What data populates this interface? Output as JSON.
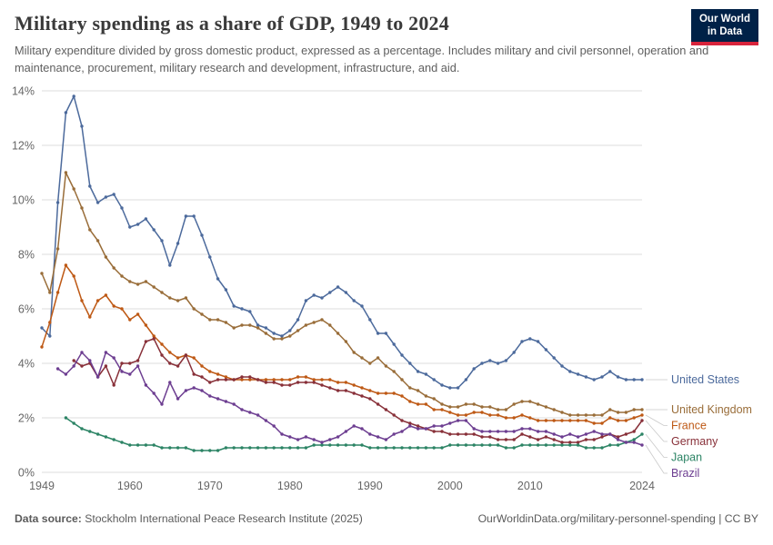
{
  "logo": {
    "line1": "Our World",
    "line2": "in Data",
    "bg_color": "#002147",
    "accent_color": "#d8243c"
  },
  "footer": {
    "source_label": "Data source:",
    "source_text": "Stockholm International Peace Research Institute (2025)",
    "link_text": "OurWorldinData.org/military-personnel-spending | CC BY"
  },
  "chart_data": {
    "type": "line",
    "title": "Military spending as a share of GDP, 1949 to 2024",
    "subtitle": "Military expenditure divided by gross domestic product, expressed as a percentage. Includes military and civil personnel, operation and maintenance, procurement, military research and development, infrastructure, and aid.",
    "grid": true,
    "legend_position": "right-end-labels",
    "x_range": [
      1949,
      2024
    ],
    "x_ticks": [
      1949,
      1960,
      1970,
      1980,
      1990,
      2000,
      2010,
      2024
    ],
    "y_range": [
      0,
      14
    ],
    "y_ticks": [
      0,
      2,
      4,
      6,
      8,
      10,
      12,
      14
    ],
    "y_unit": "%",
    "series": [
      {
        "name": "United States",
        "color": "#4C6A9C",
        "start_year": 1949,
        "values": [
          5.3,
          5.0,
          9.9,
          13.2,
          13.8,
          12.7,
          10.5,
          9.9,
          10.1,
          10.2,
          9.7,
          9.0,
          9.1,
          9.3,
          8.9,
          8.5,
          7.6,
          8.4,
          9.4,
          9.4,
          8.7,
          7.9,
          7.1,
          6.7,
          6.1,
          6.0,
          5.9,
          5.4,
          5.3,
          5.1,
          5.0,
          5.2,
          5.6,
          6.3,
          6.5,
          6.4,
          6.6,
          6.8,
          6.6,
          6.3,
          6.1,
          5.6,
          5.1,
          5.1,
          4.7,
          4.3,
          4.0,
          3.7,
          3.6,
          3.4,
          3.2,
          3.1,
          3.1,
          3.4,
          3.8,
          4.0,
          4.1,
          4.0,
          4.1,
          4.4,
          4.8,
          4.9,
          4.8,
          4.5,
          4.2,
          3.9,
          3.7,
          3.6,
          3.5,
          3.4,
          3.5,
          3.7,
          3.5,
          3.4,
          3.4,
          3.4
        ]
      },
      {
        "name": "United Kingdom",
        "color": "#996D39",
        "start_year": 1949,
        "values": [
          7.3,
          6.6,
          8.2,
          11.0,
          10.4,
          9.7,
          8.9,
          8.5,
          7.9,
          7.5,
          7.2,
          7.0,
          6.9,
          7.0,
          6.8,
          6.6,
          6.4,
          6.3,
          6.4,
          6.0,
          5.8,
          5.6,
          5.6,
          5.5,
          5.3,
          5.4,
          5.4,
          5.3,
          5.1,
          4.9,
          4.9,
          5.0,
          5.2,
          5.4,
          5.5,
          5.6,
          5.4,
          5.1,
          4.8,
          4.4,
          4.2,
          4.0,
          4.2,
          3.9,
          3.7,
          3.4,
          3.1,
          3.0,
          2.8,
          2.7,
          2.5,
          2.4,
          2.4,
          2.5,
          2.5,
          2.4,
          2.4,
          2.3,
          2.3,
          2.5,
          2.6,
          2.6,
          2.5,
          2.4,
          2.3,
          2.2,
          2.1,
          2.1,
          2.1,
          2.1,
          2.1,
          2.3,
          2.2,
          2.2,
          2.3,
          2.3
        ]
      },
      {
        "name": "France",
        "color": "#BE5915",
        "start_year": 1949,
        "values": [
          4.6,
          5.5,
          6.6,
          7.6,
          7.2,
          6.3,
          5.7,
          6.3,
          6.5,
          6.1,
          6.0,
          5.6,
          5.8,
          5.4,
          5.0,
          4.7,
          4.4,
          4.2,
          4.3,
          4.2,
          3.9,
          3.7,
          3.6,
          3.5,
          3.4,
          3.4,
          3.4,
          3.4,
          3.4,
          3.4,
          3.4,
          3.4,
          3.5,
          3.5,
          3.4,
          3.4,
          3.4,
          3.3,
          3.3,
          3.2,
          3.1,
          3.0,
          2.9,
          2.9,
          2.9,
          2.8,
          2.6,
          2.5,
          2.5,
          2.3,
          2.3,
          2.2,
          2.1,
          2.1,
          2.2,
          2.2,
          2.1,
          2.1,
          2.0,
          2.0,
          2.1,
          2.0,
          1.9,
          1.9,
          1.9,
          1.9,
          1.9,
          1.9,
          1.9,
          1.8,
          1.8,
          2.0,
          1.9,
          1.9,
          2.0,
          2.1
        ]
      },
      {
        "name": "Germany",
        "color": "#883039",
        "start_year": 1953,
        "values": [
          4.1,
          3.9,
          4.0,
          3.5,
          3.9,
          3.2,
          4.0,
          4.0,
          4.1,
          4.8,
          4.9,
          4.3,
          4.0,
          3.9,
          4.3,
          3.6,
          3.5,
          3.3,
          3.4,
          3.4,
          3.4,
          3.5,
          3.5,
          3.4,
          3.3,
          3.3,
          3.2,
          3.2,
          3.3,
          3.3,
          3.3,
          3.2,
          3.1,
          3.0,
          3.0,
          2.9,
          2.8,
          2.7,
          2.5,
          2.3,
          2.1,
          1.9,
          1.8,
          1.7,
          1.6,
          1.5,
          1.5,
          1.4,
          1.4,
          1.4,
          1.4,
          1.3,
          1.3,
          1.2,
          1.2,
          1.2,
          1.4,
          1.3,
          1.2,
          1.3,
          1.2,
          1.1,
          1.1,
          1.1,
          1.2,
          1.2,
          1.3,
          1.4,
          1.3,
          1.4,
          1.5,
          1.9
        ]
      },
      {
        "name": "Japan",
        "color": "#2C8465",
        "start_year": 1952,
        "values": [
          2.0,
          1.8,
          1.6,
          1.5,
          1.4,
          1.3,
          1.2,
          1.1,
          1.0,
          1.0,
          1.0,
          1.0,
          0.9,
          0.9,
          0.9,
          0.9,
          0.8,
          0.8,
          0.8,
          0.8,
          0.9,
          0.9,
          0.9,
          0.9,
          0.9,
          0.9,
          0.9,
          0.9,
          0.9,
          0.9,
          0.9,
          1.0,
          1.0,
          1.0,
          1.0,
          1.0,
          1.0,
          1.0,
          0.9,
          0.9,
          0.9,
          0.9,
          0.9,
          0.9,
          0.9,
          0.9,
          0.9,
          0.9,
          1.0,
          1.0,
          1.0,
          1.0,
          1.0,
          1.0,
          1.0,
          0.9,
          0.9,
          1.0,
          1.0,
          1.0,
          1.0,
          1.0,
          1.0,
          1.0,
          1.0,
          0.9,
          0.9,
          0.9,
          1.0,
          1.0,
          1.1,
          1.2,
          1.4
        ]
      },
      {
        "name": "Brazil",
        "color": "#6D3E91",
        "start_year": 1951,
        "values": [
          3.8,
          3.6,
          3.9,
          4.4,
          4.1,
          3.5,
          4.4,
          4.2,
          3.7,
          3.6,
          3.9,
          3.2,
          2.9,
          2.5,
          3.3,
          2.7,
          3.0,
          3.1,
          3.0,
          2.8,
          2.7,
          2.6,
          2.5,
          2.3,
          2.2,
          2.1,
          1.9,
          1.7,
          1.4,
          1.3,
          1.2,
          1.3,
          1.2,
          1.1,
          1.2,
          1.3,
          1.5,
          1.7,
          1.6,
          1.4,
          1.3,
          1.2,
          1.4,
          1.5,
          1.7,
          1.6,
          1.6,
          1.7,
          1.7,
          1.8,
          1.9,
          1.9,
          1.6,
          1.5,
          1.5,
          1.5,
          1.5,
          1.5,
          1.6,
          1.6,
          1.5,
          1.5,
          1.4,
          1.3,
          1.4,
          1.3,
          1.4,
          1.5,
          1.4,
          1.4,
          1.2,
          1.1,
          1.1,
          1.0
        ]
      }
    ]
  }
}
